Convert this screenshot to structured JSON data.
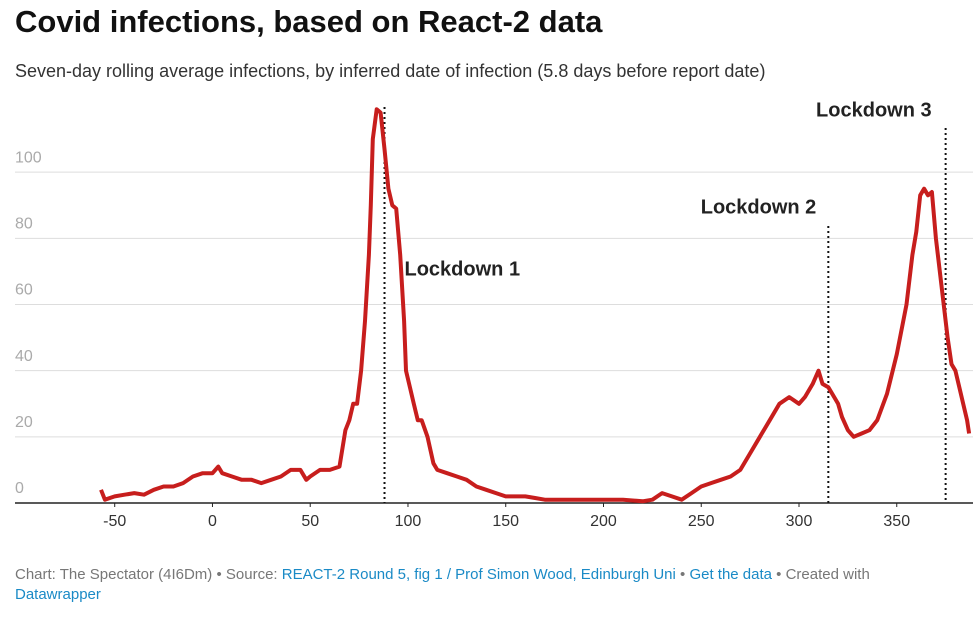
{
  "chart_data": {
    "type": "line",
    "title": "Covid infections, based on React-2 data",
    "subtitle": "Seven-day rolling average infections, by inferred date of infection (5.8 days before report date)",
    "x": [
      -57,
      -55,
      -50,
      -45,
      -40,
      -35,
      -30,
      -25,
      -20,
      -15,
      -10,
      -5,
      0,
      3,
      5,
      10,
      15,
      20,
      25,
      30,
      35,
      40,
      45,
      48,
      50,
      55,
      60,
      65,
      68,
      70,
      72,
      74,
      76,
      78,
      80,
      81,
      82,
      84,
      86,
      88,
      90,
      92,
      94,
      96,
      98,
      99,
      101,
      103,
      105,
      107,
      110,
      113,
      115,
      120,
      125,
      130,
      135,
      140,
      145,
      150,
      155,
      160,
      165,
      170,
      180,
      190,
      200,
      210,
      220,
      225,
      230,
      235,
      240,
      245,
      250,
      255,
      260,
      265,
      270,
      275,
      280,
      285,
      290,
      295,
      300,
      303,
      307,
      310,
      312,
      315,
      318,
      320,
      322,
      325,
      328,
      332,
      336,
      340,
      345,
      350,
      355,
      358,
      360,
      362,
      364,
      366,
      368,
      370,
      372,
      374,
      376,
      378,
      380,
      382,
      384,
      386,
      387
    ],
    "values": [
      4,
      1,
      2,
      2.5,
      3,
      2.5,
      4,
      5,
      5,
      6,
      8,
      9,
      9,
      11,
      9,
      8,
      7,
      7,
      6,
      7,
      8,
      10,
      10,
      7,
      8,
      10,
      10,
      11,
      22,
      25,
      30,
      30,
      40,
      55,
      75,
      90,
      110,
      119,
      118,
      107,
      95,
      90,
      89,
      75,
      55,
      40,
      35,
      30,
      25,
      25,
      20,
      12,
      10,
      9,
      8,
      7,
      5,
      4,
      3,
      2,
      2,
      2,
      1.5,
      1,
      1,
      1,
      1,
      1,
      0.5,
      1,
      3,
      2,
      1,
      3,
      5,
      6,
      7,
      8,
      10,
      15,
      20,
      25,
      30,
      32,
      30,
      32,
      36,
      40,
      36,
      35,
      32,
      30,
      26,
      22,
      20,
      21,
      22,
      25,
      33,
      45,
      60,
      75,
      82,
      93,
      95,
      93,
      94,
      80,
      70,
      60,
      50,
      42,
      40,
      35,
      30,
      25,
      21
    ],
    "color": "#c71e1d",
    "xlim": [
      -101,
      389
    ],
    "ylim": [
      0,
      120
    ],
    "xticks": [
      -50,
      0,
      50,
      100,
      150,
      200,
      250,
      300,
      350
    ],
    "yticks": [
      0,
      20,
      40,
      60,
      80,
      100
    ],
    "grid": true,
    "annotations": [
      {
        "label": "Lockdown 1",
        "x": 88
      },
      {
        "label": "Lockdown 2",
        "x": 315
      },
      {
        "label": "Lockdown 3",
        "x": 375
      }
    ],
    "footer": [
      {
        "text": "Chart: The Spectator (4I6Dm) • Source: ",
        "link": false
      },
      {
        "text": "REACT-2 Round 5, fig 1 / Prof Simon Wood, Edinburgh Uni",
        "link": true
      },
      {
        "text": " • ",
        "link": false
      },
      {
        "text": "Get the data",
        "link": true
      },
      {
        "text": " • Created with ",
        "link": false
      },
      {
        "text": "Datawrapper",
        "link": true
      }
    ]
  }
}
